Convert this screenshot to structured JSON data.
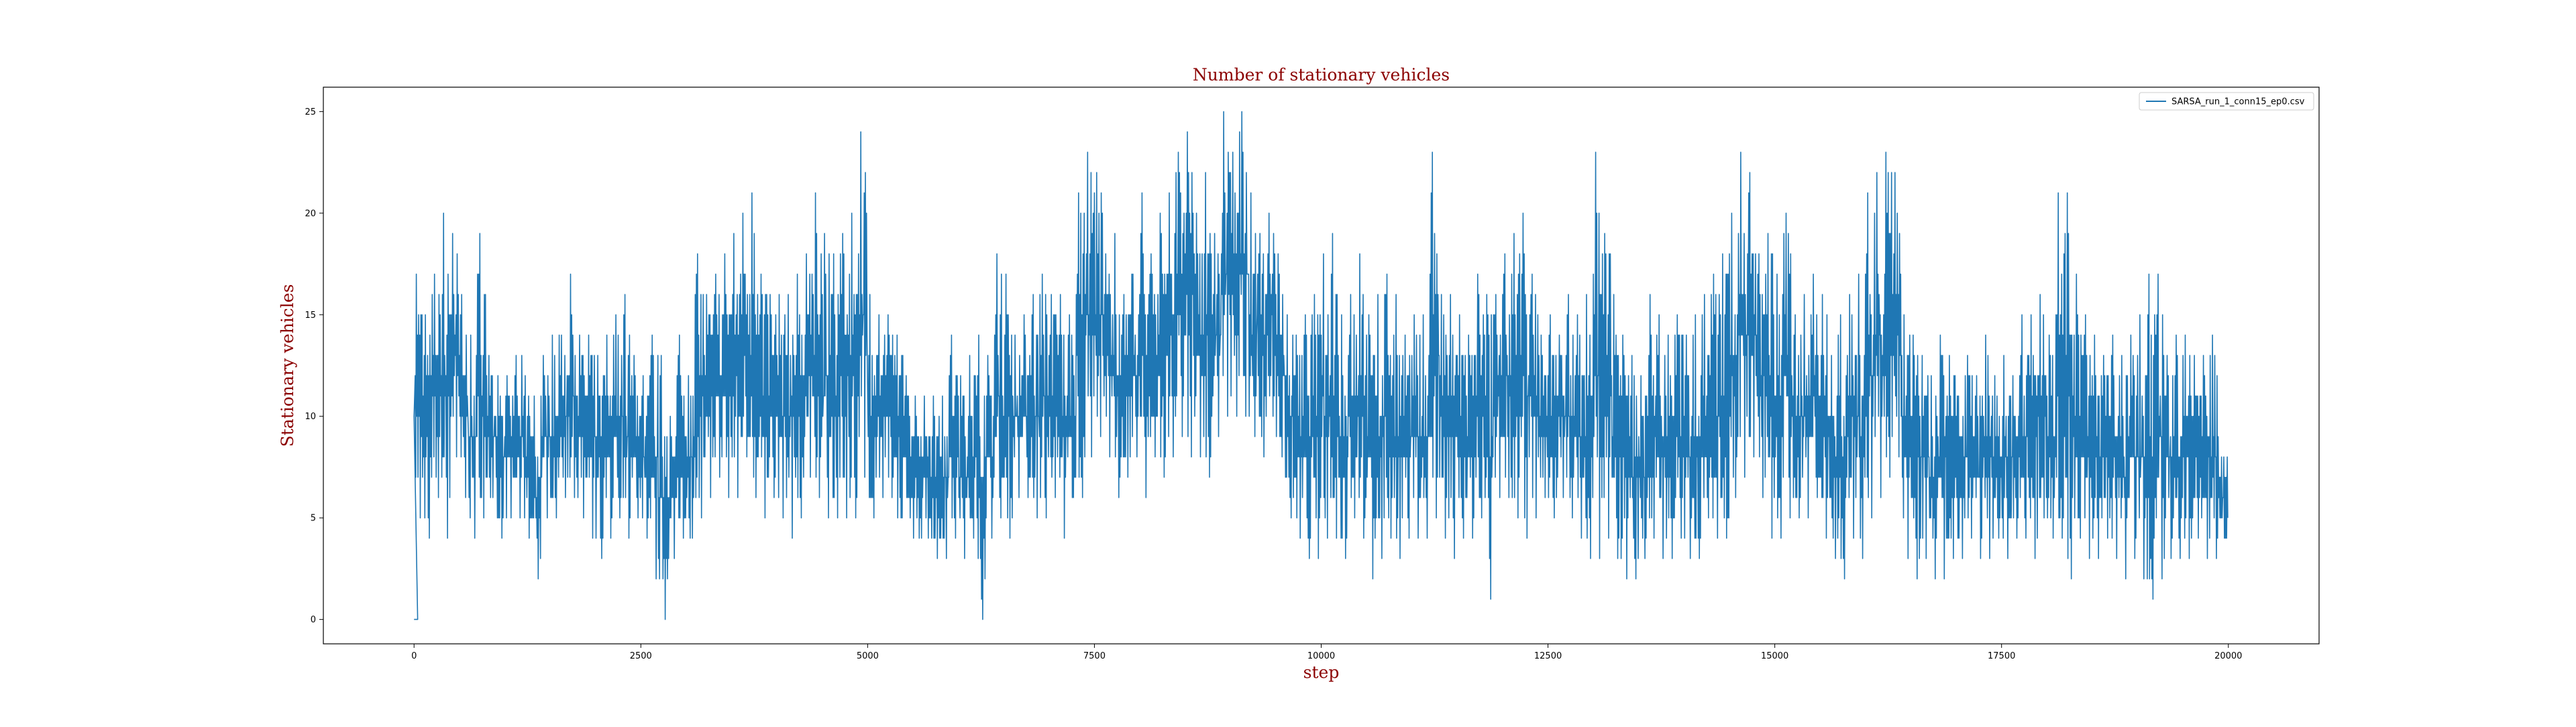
{
  "chart_data": {
    "type": "line",
    "title": "Number of stationary vehicles",
    "xlabel": "step",
    "ylabel": "Stationary vehicles",
    "xlim": [
      -1000,
      21000
    ],
    "ylim": [
      -1.2,
      26.2
    ],
    "xticks": [
      0,
      2500,
      5000,
      7500,
      10000,
      12500,
      15000,
      17500,
      20000
    ],
    "yticks": [
      0,
      5,
      10,
      15,
      20,
      25
    ],
    "grid": false,
    "legend_position": "top-right",
    "series": [
      {
        "name": "SARSA_run_1_conn15_ep0.csv",
        "color": "#1f77b4",
        "x": [
          0,
          100,
          200,
          300,
          400,
          500,
          600,
          700,
          800,
          900,
          1000,
          1100,
          1200,
          1300,
          1400,
          1500,
          1600,
          1700,
          1800,
          1900,
          2000,
          2100,
          2200,
          2300,
          2400,
          2500,
          2600,
          2700,
          2800,
          2900,
          3000,
          3100,
          3200,
          3300,
          3400,
          3500,
          3600,
          3700,
          3800,
          3900,
          4000,
          4100,
          4200,
          4300,
          4400,
          4500,
          4600,
          4700,
          4800,
          4900,
          5000,
          5100,
          5200,
          5300,
          5400,
          5500,
          5600,
          5700,
          5800,
          5900,
          6000,
          6100,
          6200,
          6300,
          6400,
          6500,
          6600,
          6700,
          6800,
          6900,
          7000,
          7100,
          7200,
          7300,
          7400,
          7500,
          7600,
          7700,
          7800,
          7900,
          8000,
          8100,
          8200,
          8300,
          8400,
          8500,
          8600,
          8700,
          8800,
          8900,
          9000,
          9100,
          9200,
          9300,
          9400,
          9500,
          9600,
          9700,
          9800,
          9900,
          10000,
          10100,
          10200,
          10300,
          10400,
          10500,
          10600,
          10700,
          10800,
          10900,
          11000,
          11100,
          11200,
          11300,
          11400,
          11500,
          11600,
          11700,
          11800,
          11900,
          12000,
          12100,
          12200,
          12300,
          12400,
          12500,
          12600,
          12700,
          12800,
          12900,
          13000,
          13100,
          13200,
          13300,
          13400,
          13500,
          13600,
          13700,
          13800,
          13900,
          14000,
          14100,
          14200,
          14300,
          14400,
          14500,
          14600,
          14700,
          14800,
          14900,
          15000,
          15100,
          15200,
          15300,
          15400,
          15500,
          15600,
          15700,
          15800,
          15900,
          16000,
          16100,
          16200,
          16300,
          16400,
          16500,
          16600,
          16700,
          16800,
          16900,
          17000,
          17100,
          17200,
          17300,
          17400,
          17500,
          17600,
          17700,
          17800,
          17900,
          18000,
          18100,
          18200,
          18300,
          18400,
          18500,
          18600,
          18700,
          18800,
          18900,
          19000,
          19100,
          19200,
          19300,
          19400,
          19500,
          19600,
          19700,
          19800,
          19900,
          20000
        ],
        "y_min": [
          0,
          5,
          4,
          6,
          4,
          8,
          6,
          4,
          5,
          6,
          4,
          5,
          5,
          4,
          2,
          5,
          5,
          6,
          6,
          5,
          4,
          3,
          4,
          5,
          4,
          5,
          4,
          2,
          0,
          3,
          4,
          4,
          5,
          6,
          7,
          6,
          6,
          8,
          6,
          5,
          6,
          5,
          4,
          5,
          7,
          6,
          5,
          5,
          5,
          5,
          7,
          5,
          6,
          6,
          5,
          5,
          4,
          4,
          3,
          3,
          4,
          3,
          4,
          0,
          4,
          5,
          4,
          6,
          6,
          5,
          5,
          6,
          4,
          6,
          6,
          8,
          9,
          8,
          6,
          7,
          8,
          6,
          8,
          7,
          8,
          9,
          8,
          8,
          7,
          9,
          10,
          10,
          10,
          9,
          8,
          10,
          8,
          5,
          4,
          3,
          3,
          4,
          4,
          3,
          5,
          4,
          2,
          3,
          4,
          3,
          4,
          4,
          4,
          5,
          4,
          3,
          4,
          4,
          5,
          1,
          6,
          6,
          5,
          4,
          5,
          6,
          5,
          6,
          5,
          4,
          3,
          3,
          4,
          3,
          2,
          2,
          3,
          4,
          3,
          3,
          4,
          3,
          3,
          5,
          4,
          4,
          6,
          7,
          8,
          6,
          4,
          4,
          5,
          5,
          5,
          6,
          4,
          3,
          2,
          4,
          3,
          5,
          6,
          7,
          8,
          3,
          2,
          3,
          2,
          2,
          3,
          3,
          4,
          3,
          3,
          4,
          3,
          4,
          4,
          3,
          5,
          4,
          4,
          2,
          4,
          3,
          3,
          4,
          3,
          2,
          3,
          2,
          1,
          2,
          3,
          3,
          3,
          4,
          3,
          3,
          4
        ],
        "y_max": [
          0,
          17,
          15,
          17,
          20,
          19,
          16,
          14,
          19,
          13,
          12,
          12,
          13,
          12,
          11,
          13,
          14,
          14,
          17,
          14,
          14,
          13,
          14,
          15,
          16,
          13,
          12,
          14,
          13,
          10,
          14,
          12,
          18,
          16,
          17,
          18,
          19,
          20,
          21,
          17,
          16,
          16,
          16,
          17,
          18,
          21,
          19,
          18,
          19,
          20,
          24,
          16,
          15,
          15,
          14,
          12,
          11,
          11,
          11,
          11,
          14,
          12,
          13,
          14,
          13,
          18,
          17,
          14,
          15,
          16,
          17,
          16,
          16,
          15,
          21,
          23,
          22,
          18,
          19,
          16,
          17,
          21,
          18,
          20,
          21,
          23,
          24,
          20,
          22,
          19,
          25,
          23,
          25,
          21,
          19,
          20,
          18,
          15,
          14,
          15,
          16,
          18,
          19,
          15,
          16,
          18,
          15,
          16,
          17,
          16,
          14,
          15,
          15,
          23,
          16,
          16,
          15,
          14,
          17,
          16,
          16,
          18,
          19,
          20,
          17,
          14,
          15,
          14,
          16,
          15,
          16,
          23,
          19,
          16,
          14,
          13,
          12,
          16,
          15,
          14,
          15,
          14,
          15,
          16,
          17,
          18,
          20,
          23,
          22,
          18,
          19,
          17,
          20,
          15,
          16,
          17,
          16,
          13,
          15,
          16,
          17,
          21,
          22,
          23,
          22,
          15,
          14,
          13,
          12,
          14,
          13,
          11,
          13,
          12,
          14,
          12,
          13,
          12,
          15,
          15,
          16,
          14,
          21,
          21,
          17,
          15,
          14,
          13,
          14,
          13,
          14,
          15,
          17,
          17,
          13,
          14,
          14,
          13,
          13,
          14,
          8
        ]
      }
    ]
  }
}
